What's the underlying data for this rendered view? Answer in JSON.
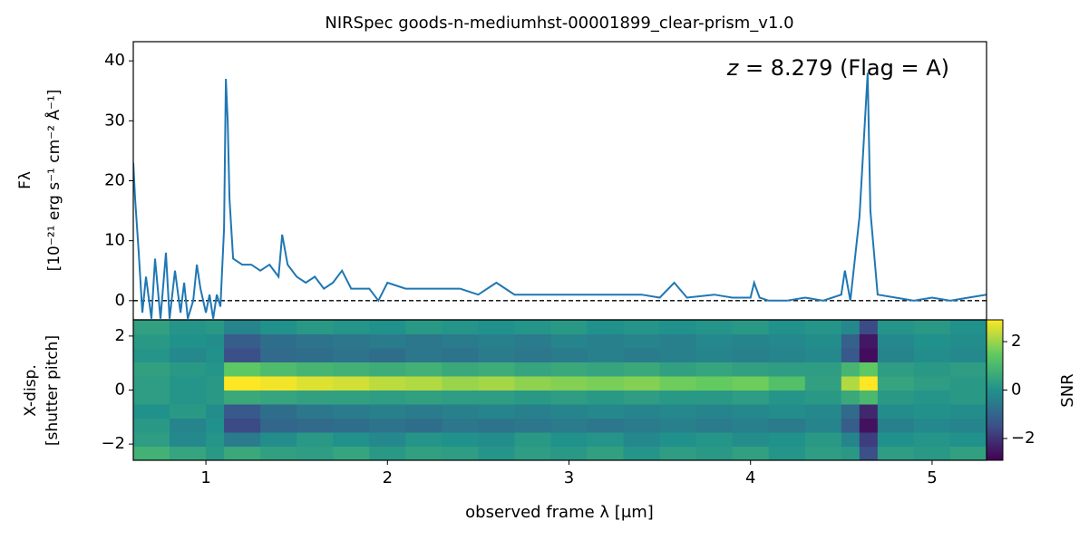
{
  "chart_data": [
    {
      "type": "line",
      "title": "NIRSpec goods-n-mediumhst-00001899_clear-prism_v1.0",
      "annotation": {
        "variable": "z",
        "text": " = 8.279 (Flag = A)"
      },
      "ylabel": [
        "Fλ",
        "[10⁻²¹ erg s⁻¹ cm⁻² Å⁻¹]"
      ],
      "xlim": [
        0.6,
        5.3
      ],
      "ylim": [
        -3.2,
        43.2
      ],
      "yticks": [
        0,
        10,
        20,
        30,
        40
      ],
      "reference_line": 0,
      "series": [
        {
          "color": "#1f77b4",
          "x": [
            0.6,
            0.61,
            0.63,
            0.65,
            0.67,
            0.7,
            0.72,
            0.75,
            0.78,
            0.8,
            0.83,
            0.86,
            0.88,
            0.9,
            0.93,
            0.95,
            0.97,
            1.0,
            1.02,
            1.04,
            1.06,
            1.08,
            1.1,
            1.11,
            1.12,
            1.13,
            1.15,
            1.2,
            1.25,
            1.3,
            1.35,
            1.4,
            1.42,
            1.45,
            1.5,
            1.55,
            1.6,
            1.65,
            1.7,
            1.75,
            1.8,
            1.9,
            1.95,
            2.0,
            2.1,
            2.2,
            2.3,
            2.4,
            2.5,
            2.6,
            2.7,
            2.8,
            2.9,
            3.0,
            3.1,
            3.2,
            3.3,
            3.4,
            3.5,
            3.58,
            3.65,
            3.8,
            3.9,
            4.0,
            4.02,
            4.05,
            4.1,
            4.2,
            4.3,
            4.4,
            4.5,
            4.52,
            4.55,
            4.6,
            4.63,
            4.645,
            4.66,
            4.7,
            4.8,
            4.9,
            5.0,
            5.1,
            5.2,
            5.3
          ],
          "values": [
            23,
            17,
            8,
            -2,
            4,
            -3,
            7,
            -3,
            8,
            -3,
            5,
            -2,
            3,
            -3,
            0,
            6,
            2,
            -2,
            1,
            -3,
            1,
            -1,
            12,
            37,
            30,
            17,
            7,
            6,
            6,
            5,
            6,
            4,
            11,
            6,
            4,
            3,
            4,
            2,
            3,
            5,
            2,
            2,
            0,
            3,
            2,
            2,
            2,
            2,
            1,
            3,
            1,
            1,
            1,
            1,
            1,
            1,
            1,
            1,
            0.5,
            3,
            0.5,
            1,
            0.5,
            0.5,
            3,
            0.5,
            0,
            0,
            0.5,
            0,
            1,
            5,
            0,
            14,
            30,
            38,
            15,
            1,
            0.5,
            0,
            0.5,
            0,
            0.5,
            1
          ]
        }
      ]
    },
    {
      "type": "heatmap",
      "xlabel": "observed frame λ [μm]",
      "ylabel": [
        "X-disp.",
        "[shutter pitch]"
      ],
      "colorbar_label": "SNR",
      "xlim": [
        0.6,
        5.3
      ],
      "xticks": [
        1,
        2,
        3,
        4,
        5
      ],
      "ylim": [
        -2.6,
        2.6
      ],
      "yticks": [
        {
          "value": -2,
          "label": "−2"
        },
        0,
        2
      ],
      "clim": [
        -2.9,
        2.9
      ],
      "cticks": [
        {
          "value": -2,
          "label": "−2"
        },
        0,
        2
      ],
      "colormap": "viridis",
      "x_edges": [
        0.6,
        0.8,
        1.0,
        1.1,
        1.3,
        1.5,
        1.7,
        1.9,
        2.1,
        2.3,
        2.5,
        2.7,
        2.9,
        3.1,
        3.3,
        3.5,
        3.7,
        3.9,
        4.1,
        4.3,
        4.5,
        4.6,
        4.7,
        4.9,
        5.1,
        5.3
      ],
      "y_edges": [
        -2.6,
        -2.08,
        -1.56,
        -1.04,
        -0.52,
        0,
        0.52,
        1.04,
        1.56,
        2.08,
        2.6
      ],
      "z": [
        [
          0.8,
          0.5,
          0.2,
          0.6,
          0.4,
          0.3,
          0.5,
          0.2,
          0.4,
          0.3,
          0.1,
          0.3,
          0.2,
          0.4,
          0.1,
          0.3,
          0.2,
          0.4,
          0.1,
          0.3,
          0.2,
          -1.5,
          0.3,
          0.2,
          0.4
        ],
        [
          0.3,
          -0.2,
          0.1,
          -0.5,
          -0.1,
          0.2,
          0,
          -0.2,
          0.1,
          0,
          -0.1,
          0.2,
          0,
          0.1,
          -0.2,
          0,
          0.1,
          -0.1,
          0,
          0.2,
          -0.3,
          -1.8,
          0,
          0.1,
          0
        ],
        [
          0.2,
          -0.3,
          0,
          -1.6,
          -1.0,
          -0.9,
          -0.8,
          -0.7,
          -0.8,
          -0.6,
          -0.7,
          -0.6,
          -0.5,
          -0.6,
          -0.5,
          -0.4,
          -0.5,
          -0.4,
          -0.5,
          -0.3,
          -1.2,
          -2.6,
          -0.4,
          -0.2,
          -0.3
        ],
        [
          0,
          0.2,
          -0.1,
          -1.3,
          -0.8,
          -0.6,
          -0.5,
          -0.4,
          -0.5,
          -0.4,
          -0.3,
          -0.4,
          -0.3,
          -0.2,
          -0.3,
          -0.2,
          -0.3,
          -0.2,
          -0.1,
          -0.2,
          -0.9,
          -2.2,
          -0.1,
          0,
          -0.1
        ],
        [
          0.3,
          0.1,
          0.2,
          0.6,
          0.5,
          0.4,
          0.4,
          0.3,
          0.4,
          0.3,
          0.3,
          0.2,
          0.3,
          0.2,
          0.3,
          0.2,
          0.2,
          0.3,
          0.1,
          0.2,
          0.6,
          1.0,
          0.2,
          0.1,
          0.2
        ],
        [
          0.3,
          0.1,
          0.2,
          2.9,
          2.8,
          2.6,
          2.5,
          2.3,
          2.2,
          2.0,
          2.1,
          1.9,
          1.8,
          1.7,
          1.8,
          1.6,
          1.5,
          1.6,
          1.2,
          0.4,
          2.2,
          2.9,
          0.5,
          0.3,
          0.2
        ],
        [
          0.4,
          0.2,
          0.1,
          1.4,
          1.1,
          0.9,
          0.8,
          0.7,
          0.8,
          0.6,
          0.7,
          0.5,
          0.6,
          0.5,
          0.6,
          0.4,
          0.5,
          0.4,
          0.3,
          0.3,
          0.9,
          1.4,
          0.3,
          0.2,
          0.3
        ],
        [
          0.1,
          -0.2,
          0,
          -1.5,
          -0.9,
          -0.8,
          -0.7,
          -0.8,
          -0.6,
          -0.7,
          -0.5,
          -0.6,
          -0.5,
          -0.4,
          -0.5,
          -0.4,
          -0.3,
          -0.4,
          -0.3,
          -0.2,
          -1.3,
          -2.7,
          -0.3,
          -0.1,
          -0.2
        ],
        [
          0.2,
          0,
          -0.1,
          -1.2,
          -0.8,
          -0.7,
          -0.6,
          -0.5,
          -0.6,
          -0.5,
          -0.4,
          -0.5,
          -0.3,
          -0.4,
          -0.3,
          -0.4,
          -0.2,
          -0.3,
          -0.2,
          -0.1,
          -1.1,
          -2.5,
          -0.2,
          0,
          -0.1
        ],
        [
          0.4,
          0.1,
          0.2,
          -0.3,
          0,
          0.2,
          0.1,
          0,
          0.2,
          0.1,
          0,
          0.1,
          0.2,
          0,
          0.1,
          0,
          0.1,
          0.2,
          0,
          0.1,
          -0.2,
          -1.6,
          0.1,
          0.2,
          0
        ]
      ]
    }
  ]
}
